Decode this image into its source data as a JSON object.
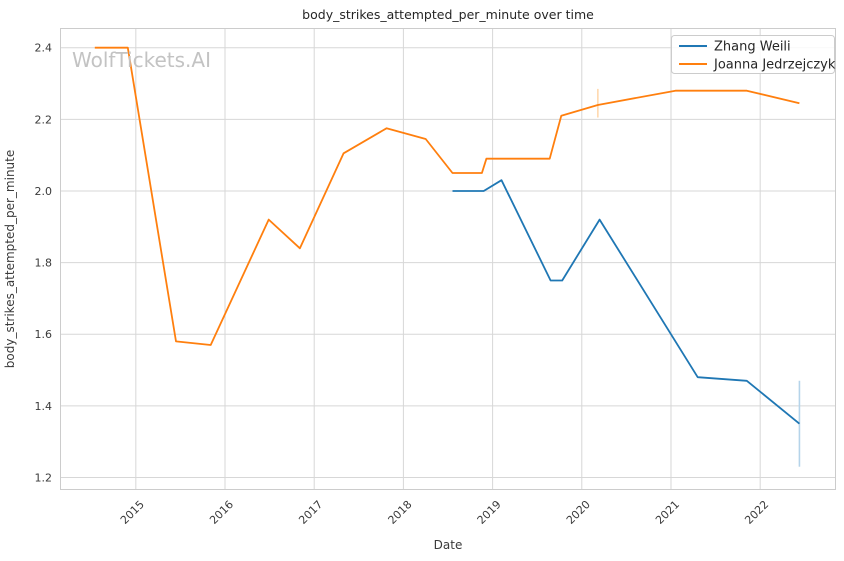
{
  "figure": {
    "watermark": "WolfTickets.AI"
  },
  "chart_data": {
    "type": "line",
    "title": "body_strikes_attempted_per_minute over time",
    "xlabel": "Date",
    "ylabel": "body_strikes_attempted_per_minute",
    "xlim": [
      2014.15,
      2022.85
    ],
    "ylim": [
      1.165,
      2.455
    ],
    "x_ticks": [
      "2015",
      "2016",
      "2017",
      "2018",
      "2019",
      "2020",
      "2021",
      "2022"
    ],
    "y_ticks": [
      "1.2",
      "1.4",
      "1.6",
      "1.8",
      "2.0",
      "2.2",
      "2.4"
    ],
    "grid": true,
    "legend_position": "upper-right",
    "colors": {
      "grid": "#d7d7d7",
      "axis_border": "#cccccc",
      "title_text": "#262626",
      "tick_text": "#3a3a3a",
      "watermark": "#c3c3c3"
    },
    "series": [
      {
        "name": "Zhang Weili",
        "color": "#1f77b4",
        "error_color": "#b5d4ea",
        "points": [
          [
            2018.55,
            2.0
          ],
          [
            2018.9,
            2.0
          ],
          [
            2019.1,
            2.03
          ],
          [
            2019.65,
            1.75
          ],
          [
            2019.78,
            1.75
          ],
          [
            2020.2,
            1.92
          ],
          [
            2021.3,
            1.48
          ],
          [
            2021.85,
            1.47
          ],
          [
            2022.44,
            1.35
          ]
        ],
        "error_bars": [
          {
            "x": 2022.44,
            "y": 1.35,
            "low": 1.23,
            "high": 1.47
          }
        ]
      },
      {
        "name": "Joanna Jedrzejczyk",
        "color": "#ff7f0e",
        "error_color": "#ffd8ae",
        "points": [
          [
            2014.54,
            2.4
          ],
          [
            2014.91,
            2.4
          ],
          [
            2015.45,
            1.58
          ],
          [
            2015.84,
            1.57
          ],
          [
            2016.49,
            1.92
          ],
          [
            2016.84,
            1.84
          ],
          [
            2017.33,
            2.105
          ],
          [
            2017.81,
            2.175
          ],
          [
            2018.25,
            2.145
          ],
          [
            2018.55,
            2.05
          ],
          [
            2018.88,
            2.05
          ],
          [
            2018.93,
            2.09
          ],
          [
            2019.64,
            2.09
          ],
          [
            2019.77,
            2.21
          ],
          [
            2020.18,
            2.24
          ],
          [
            2021.05,
            2.28
          ],
          [
            2021.85,
            2.28
          ],
          [
            2022.44,
            2.245
          ]
        ],
        "error_bars": [
          {
            "x": 2020.18,
            "y": 2.24,
            "low": 2.205,
            "high": 2.285
          }
        ]
      }
    ]
  }
}
